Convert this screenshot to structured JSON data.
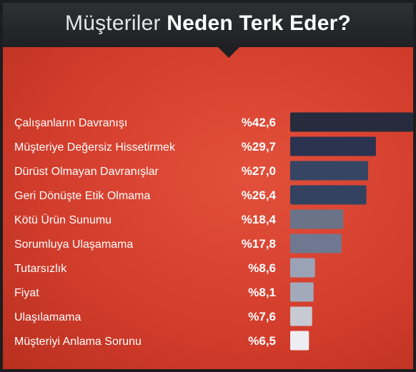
{
  "header": {
    "title_light": "Müşteriler",
    "title_bold": "Neden Terk Eder?"
  },
  "chart_data": {
    "type": "bar",
    "orientation": "horizontal",
    "title": "Müşteriler Neden Terk Eder?",
    "categories": [
      "Çalışanların Davranışı",
      "Müşteriye Değersiz Hissetirmek",
      "Dürüst Olmayan Davranışlar",
      "Geri Dönüşte Etik Olmama",
      "Kötü Ürün Sunumu",
      "Sorumluya Ulaşamama",
      "Tutarsızlık",
      "Fiyat",
      "Ulaşılamama",
      "Müşteriyi Anlama Sorunu"
    ],
    "values": [
      42.6,
      29.7,
      27.0,
      26.4,
      18.4,
      17.8,
      8.6,
      8.1,
      7.6,
      6.5
    ],
    "value_labels": [
      "%42,6",
      "%29,7",
      "%27,0",
      "%26,4",
      "%18,4",
      "%17,8",
      "%8,6",
      "%8,1",
      "%7,6",
      "%6,5"
    ],
    "colors": [
      "#262c3d",
      "#2b3350",
      "#364563",
      "#334260",
      "#6a7387",
      "#6f7890",
      "#9aa3b6",
      "#a1a9bb",
      "#c7cad3",
      "#eceef3"
    ],
    "grid": false,
    "legend": "none"
  }
}
